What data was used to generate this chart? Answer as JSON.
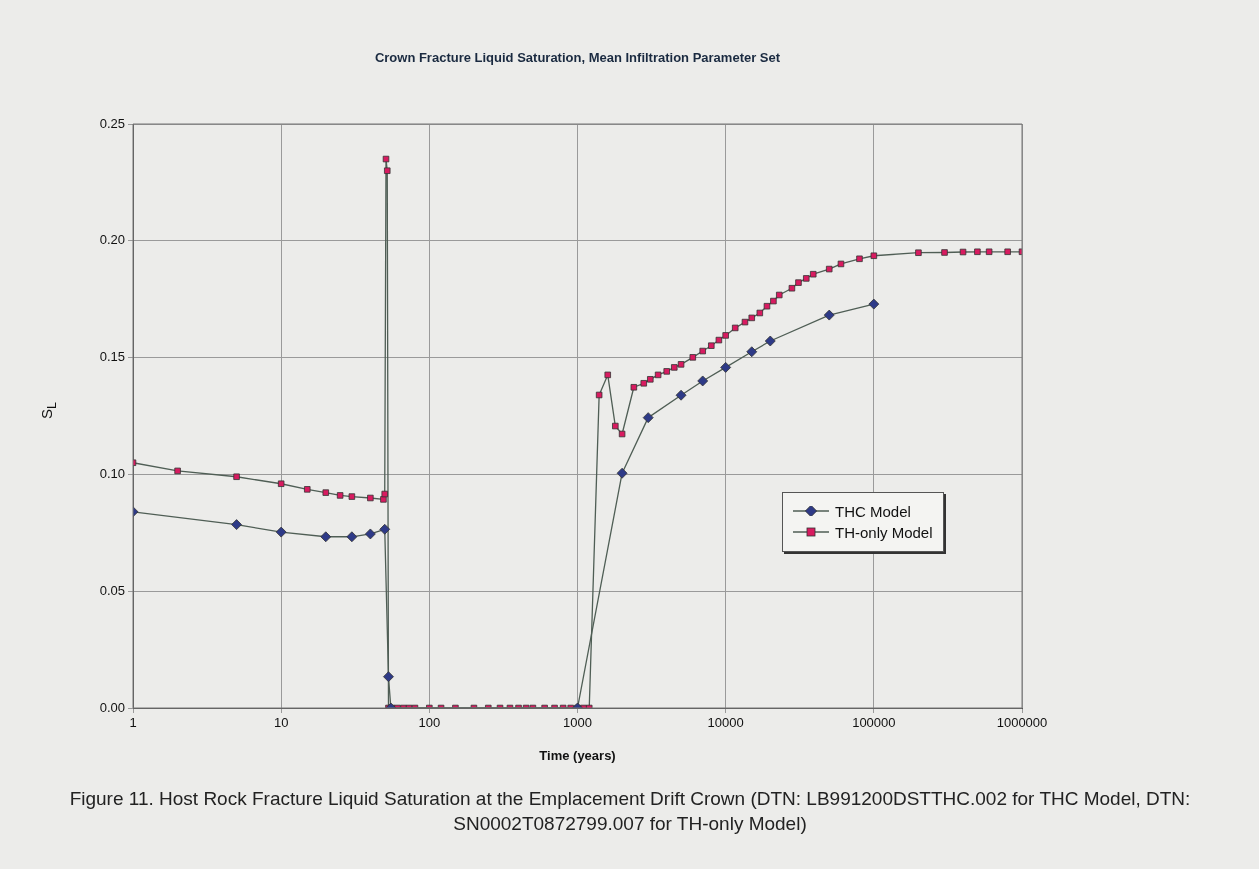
{
  "chart_data": {
    "type": "line",
    "title": "Crown Fracture Liquid Saturation, Mean Infiltration Parameter Set",
    "xlabel": "Time (years)",
    "ylabel": "S$_{L}$",
    "log": "x",
    "xlim": [
      1,
      1000000
    ],
    "xticks": [
      1,
      10,
      100,
      1000,
      10000,
      100000,
      1000000
    ],
    "ylim": [
      0,
      0.25
    ],
    "yticks": [
      {
        "value": 0,
        "label": "0.00"
      },
      {
        "value": 0.05,
        "label": "0.05"
      },
      {
        "value": 0.1,
        "label": "0.10"
      },
      {
        "value": 0.15,
        "label": "0.15"
      },
      {
        "value": 0.2,
        "label": "0.20"
      },
      {
        "value": 0.25,
        "label": "0.25"
      }
    ],
    "grid": true,
    "legend": "right",
    "line_style": "solid",
    "series": [
      {
        "name": "THC Model",
        "color": "#2e3a87",
        "marker": "diamond",
        "x": [
          1,
          5,
          10,
          20,
          30,
          40,
          50,
          53,
          55,
          1000,
          2000,
          3000,
          5000,
          7000,
          10000,
          15000,
          20000,
          50000,
          100000
        ],
        "values": [
          0.084,
          0.0785,
          0.0753,
          0.0733,
          0.0733,
          0.0745,
          0.0765,
          0.0134,
          0,
          0,
          0.1005,
          0.1243,
          0.1339,
          0.14,
          0.1458,
          0.1525,
          0.1571,
          0.1682,
          0.1729
        ]
      },
      {
        "name": "TH-only Model",
        "color": "#d81b60",
        "marker": "square",
        "x": [
          1,
          2,
          5,
          10,
          15,
          20,
          25,
          30,
          40,
          49,
          50,
          51,
          52,
          53,
          56,
          61,
          67,
          73,
          80,
          100,
          120,
          150,
          200,
          250,
          300,
          350,
          400,
          450,
          500,
          600,
          700,
          800,
          900,
          1000,
          1100,
          1200,
          1400,
          1600,
          1800,
          2000,
          2400,
          2800,
          3100,
          3500,
          4000,
          4500,
          5000,
          6000,
          7000,
          8000,
          9000,
          10000,
          11600,
          13500,
          15000,
          17000,
          19000,
          21000,
          23000,
          28000,
          31000,
          35000,
          39000,
          50000,
          60000,
          80000,
          100000,
          200000,
          300000,
          400000,
          500000,
          600000,
          800000,
          1000000
        ],
        "values": [
          0.105,
          0.1015,
          0.099,
          0.096,
          0.0936,
          0.0922,
          0.091,
          0.0905,
          0.0899,
          0.0893,
          0.0916,
          0.235,
          0.23,
          0,
          0,
          0,
          0,
          0,
          0,
          0,
          0,
          0,
          0,
          0,
          0,
          0,
          0,
          0,
          0,
          0,
          0,
          0,
          0,
          0,
          0,
          0,
          0.134,
          0.1426,
          0.1207,
          0.1173,
          0.1373,
          0.139,
          0.1407,
          0.1426,
          0.1441,
          0.1458,
          0.1471,
          0.1501,
          0.1528,
          0.1551,
          0.1575,
          0.1595,
          0.1627,
          0.1652,
          0.167,
          0.1691,
          0.172,
          0.1742,
          0.1768,
          0.1797,
          0.1821,
          0.1839,
          0.1857,
          0.1879,
          0.1901,
          0.1923,
          0.1936,
          0.1949,
          0.195,
          0.1952,
          0.1953,
          0.1953,
          0.1953,
          0.1953
        ]
      }
    ],
    "annotations": [
      "Figure 11. Host Rock Fracture Liquid Saturation at the Emplacement Drift Crown (DTN: LB991200DSTTHC.002 for THC Model, DTN: SN0002T0872799.007 for TH-only Model)"
    ]
  }
}
